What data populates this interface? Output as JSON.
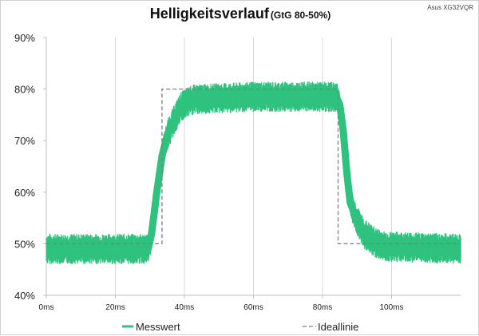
{
  "header": {
    "title": "Helligkeitsverlauf",
    "subtitle": "(GtG 80-50%)",
    "watermark": "Asus XG32VQR"
  },
  "colors": {
    "measured": "#2ec27e",
    "ideal": "#7f7f7f",
    "grid": "#d9d9d9",
    "background": "#ffffff"
  },
  "chart_data": {
    "type": "line",
    "title": "Helligkeitsverlauf",
    "subtitle": "(GtG 80-50%)",
    "xlabel": "",
    "ylabel": "",
    "xlim": [
      0,
      120
    ],
    "ylim": [
      40,
      90
    ],
    "x_unit": "ms",
    "x_ticks": [
      0,
      20,
      40,
      60,
      80,
      100
    ],
    "x_tick_labels": [
      "0ms",
      "20ms",
      "40ms",
      "60ms",
      "80ms",
      "100ms"
    ],
    "y_ticks": [
      40,
      50,
      60,
      70,
      80,
      90
    ],
    "y_tick_labels": [
      "40%",
      "50%",
      "60%",
      "70%",
      "80%",
      "90%"
    ],
    "grid": "vertical",
    "legend_position": "bottom",
    "series": [
      {
        "name": "Messwert",
        "style": "solid",
        "noise_band_percent": 2.5,
        "points": [
          [
            0,
            49
          ],
          [
            29.5,
            49
          ],
          [
            30.5,
            52
          ],
          [
            32,
            60
          ],
          [
            33.5,
            67
          ],
          [
            35,
            71
          ],
          [
            37,
            74
          ],
          [
            39,
            76.5
          ],
          [
            41,
            77.5
          ],
          [
            43,
            78
          ],
          [
            60,
            78.5
          ],
          [
            84,
            78.5
          ],
          [
            85,
            77
          ],
          [
            86,
            72
          ],
          [
            87,
            64
          ],
          [
            88,
            58
          ],
          [
            90,
            54.5
          ],
          [
            92,
            52
          ],
          [
            95,
            50.3
          ],
          [
            98,
            49.5
          ],
          [
            120,
            49
          ]
        ]
      },
      {
        "name": "Ideallinie",
        "style": "dashed",
        "points": [
          [
            0,
            50
          ],
          [
            33.5,
            50
          ],
          [
            33.5,
            80
          ],
          [
            84.5,
            80
          ],
          [
            84.5,
            50
          ],
          [
            120,
            50
          ]
        ]
      }
    ]
  }
}
